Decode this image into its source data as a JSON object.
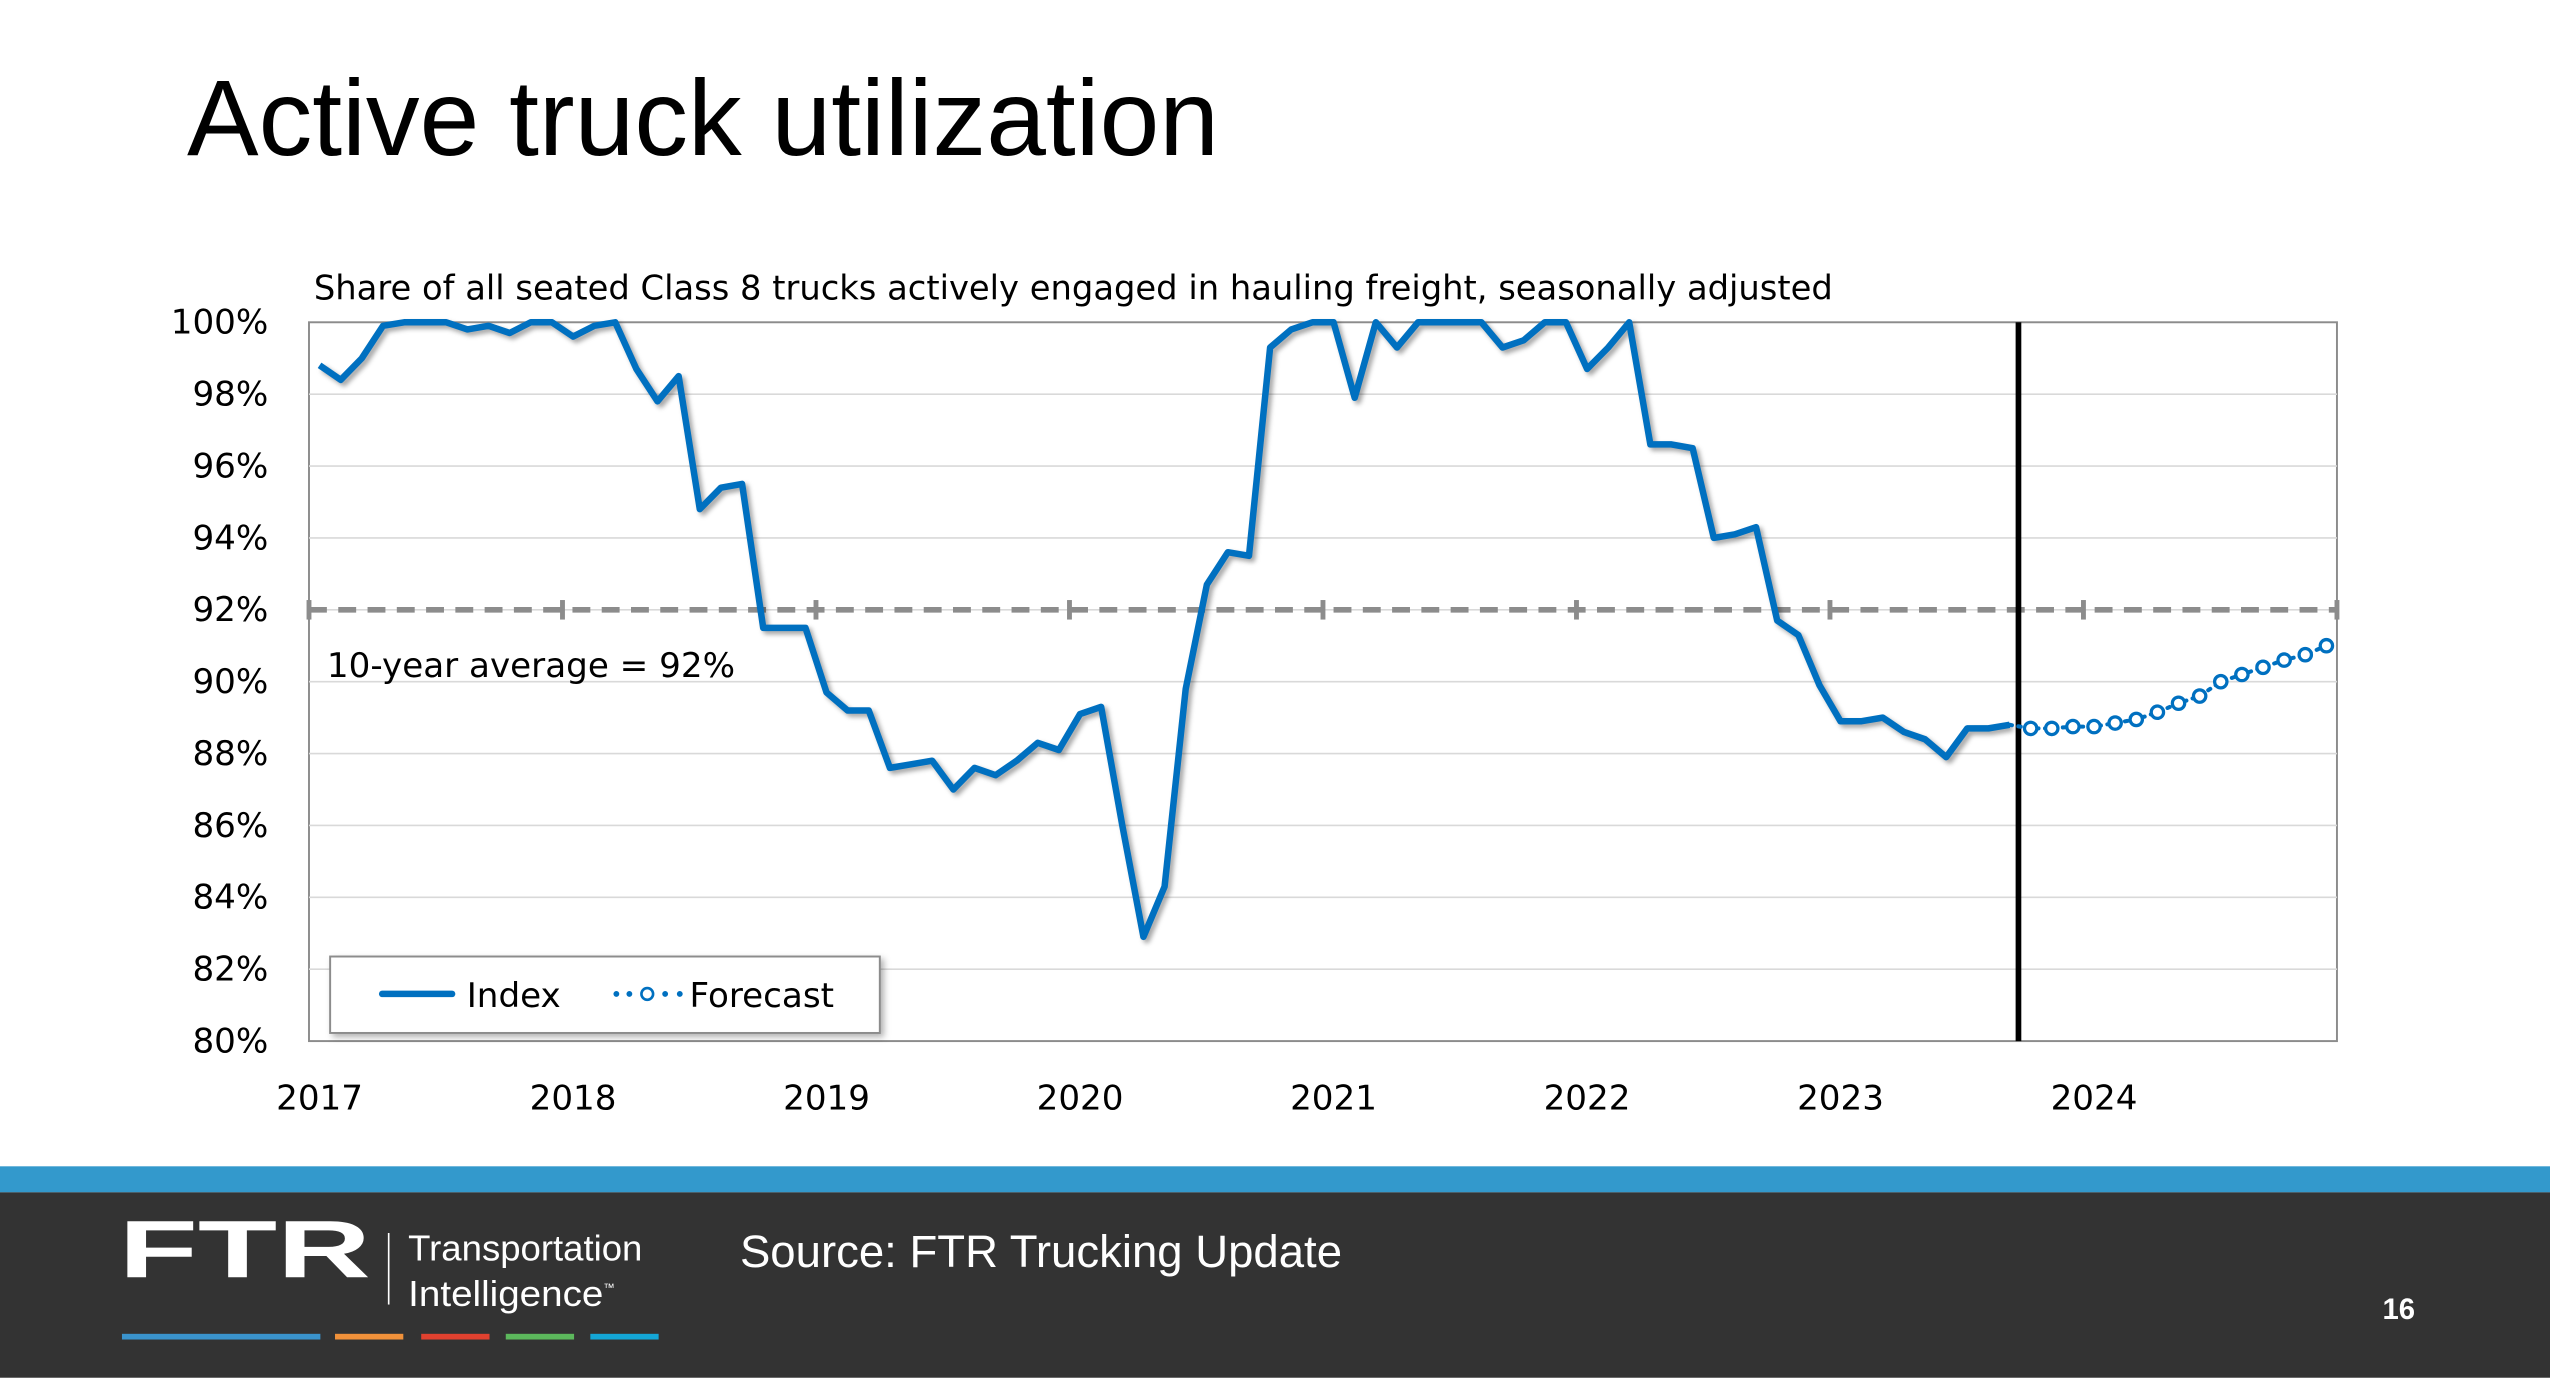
{
  "slide": {
    "title": "Active truck utilization",
    "source": "Source: FTR Trucking Update",
    "page_number": "16",
    "logo": {
      "mark": "FTR",
      "line1": "Transportation",
      "line2": "Intelligence",
      "tm": "™"
    },
    "colors": {
      "band": "#3399cc",
      "footer": "#333333",
      "logo_stripes": [
        "#3a93cc",
        "#f0913a",
        "#e0412f",
        "#5cb85c",
        "#14a6d6"
      ]
    }
  },
  "chart_data": {
    "type": "line",
    "subtitle": "Share of all seated Class 8 trucks actively engaged in hauling freight, seasonally adjusted",
    "ylim": [
      80,
      100
    ],
    "y_ticks": [
      "80%",
      "82%",
      "84%",
      "86%",
      "88%",
      "90%",
      "92%",
      "94%",
      "96%",
      "98%",
      "100%"
    ],
    "x_ticks": [
      "2017",
      "2018",
      "2019",
      "2020",
      "2021",
      "2022",
      "2023",
      "2024"
    ],
    "frequency": "monthly",
    "x_start": "2017-01",
    "x_end": "2024-12",
    "grid": true,
    "legend_placement": "bottom-left",
    "reference_line": {
      "value": 92,
      "label": "10-year average = 92%",
      "style": "dashed",
      "color": "#8c8c8c"
    },
    "divider_after": "2023-09",
    "series": [
      {
        "name": "Index",
        "style": "solid",
        "color": "#0070c0",
        "start": "2017-01",
        "values": [
          98.8,
          98.4,
          99.0,
          99.9,
          100,
          100,
          100,
          99.8,
          99.9,
          99.7,
          100,
          100,
          99.6,
          99.9,
          100,
          98.7,
          97.8,
          98.5,
          94.8,
          95.4,
          95.5,
          91.5,
          91.5,
          91.5,
          89.7,
          89.2,
          89.2,
          87.6,
          87.7,
          87.8,
          87.0,
          87.6,
          87.4,
          87.8,
          88.3,
          88.1,
          89.1,
          89.3,
          86.0,
          82.9,
          84.3,
          89.8,
          92.7,
          93.6,
          93.5,
          99.3,
          99.8,
          100,
          100,
          97.9,
          100,
          99.3,
          100,
          100,
          100,
          100,
          99.3,
          99.5,
          100,
          100,
          98.7,
          99.3,
          100,
          96.6,
          96.6,
          96.5,
          94.0,
          94.1,
          94.3,
          91.7,
          91.3,
          89.9,
          88.9,
          88.9,
          89.0,
          88.6,
          88.4,
          87.9,
          88.7,
          88.7,
          88.8
        ]
      },
      {
        "name": "Forecast",
        "style": "dotted-markers",
        "color": "#0070c0",
        "start": "2023-10",
        "values": [
          88.7,
          88.7,
          88.75,
          88.75,
          88.85,
          88.95,
          89.15,
          89.4,
          89.6,
          90.0,
          90.2,
          90.4,
          90.6,
          90.75,
          91.0
        ]
      }
    ]
  }
}
